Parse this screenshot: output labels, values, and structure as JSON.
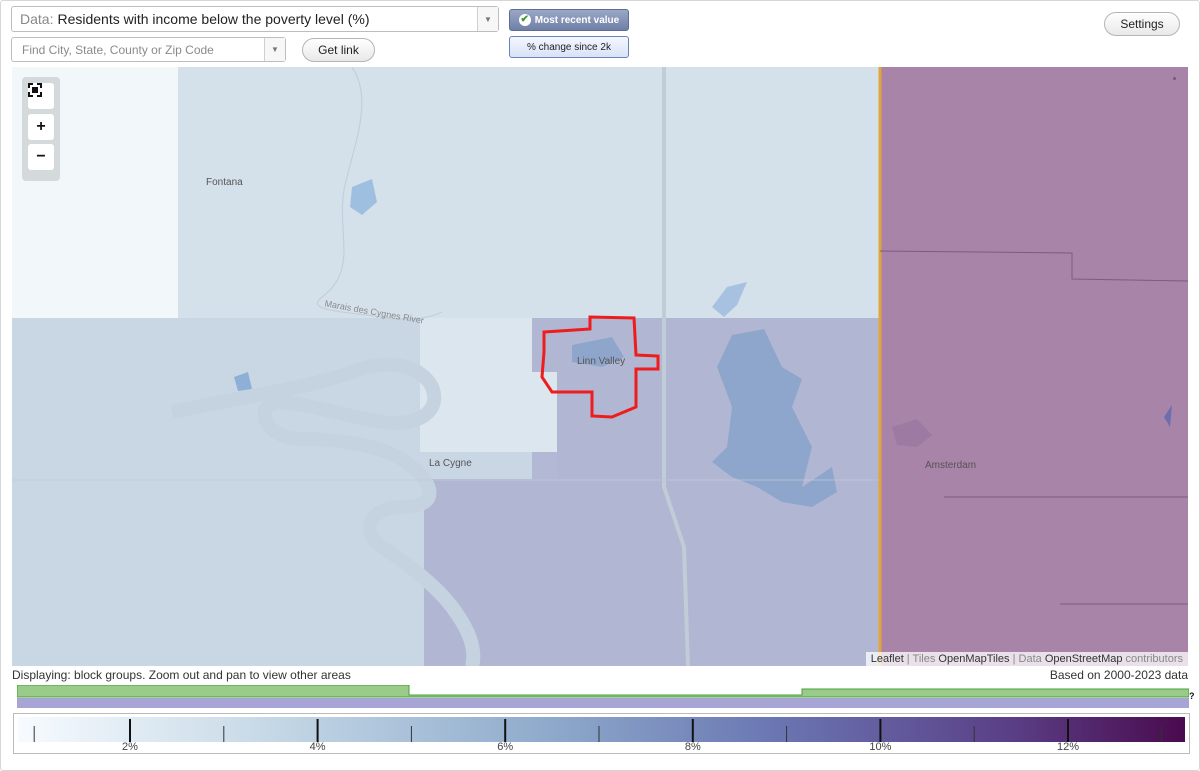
{
  "controls": {
    "data_label": "Data:",
    "data_value": "Residents with income below the poverty level (%)",
    "search_placeholder": "Find City, State, County or Zip Code",
    "get_link": "Get link",
    "settings": "Settings",
    "mode_recent": "Most recent value",
    "mode_change": "% change since 2k"
  },
  "map": {
    "places": [
      "Fontana",
      "Linn Valley",
      "La Cygne",
      "Amsterdam"
    ],
    "river_label": "Marais des Cygnes River",
    "attribution": {
      "leaflet": "Leaflet",
      "sep1": " | ",
      "tiles_prefix": "Tiles ",
      "tiles": "OpenMapTiles",
      "sep2": " | ",
      "data_prefix": "Data ",
      "data": "OpenStreetMap",
      "suffix": " contributors"
    },
    "zoom_icons": [
      "fullscreen-icon",
      "zoom-in-icon",
      "zoom-out-icon"
    ],
    "highlight_color": "#ee1c1c"
  },
  "footer": {
    "display_note": "Displaying: block groups. Zoom out and pan to view other areas",
    "based_on": "Based on 2000-2023 data",
    "help": "?"
  },
  "legend": {
    "ticks": [
      "2%",
      "4%",
      "6%",
      "8%",
      "10%",
      "12%"
    ],
    "colors": {
      "low": "#f7fbff",
      "mid": "#8ea9cc",
      "high": "#5a2a6e",
      "max": "#4a0a4e"
    },
    "availability_colors": {
      "green": "#99cc88",
      "purple": "#a7a4d6"
    }
  }
}
